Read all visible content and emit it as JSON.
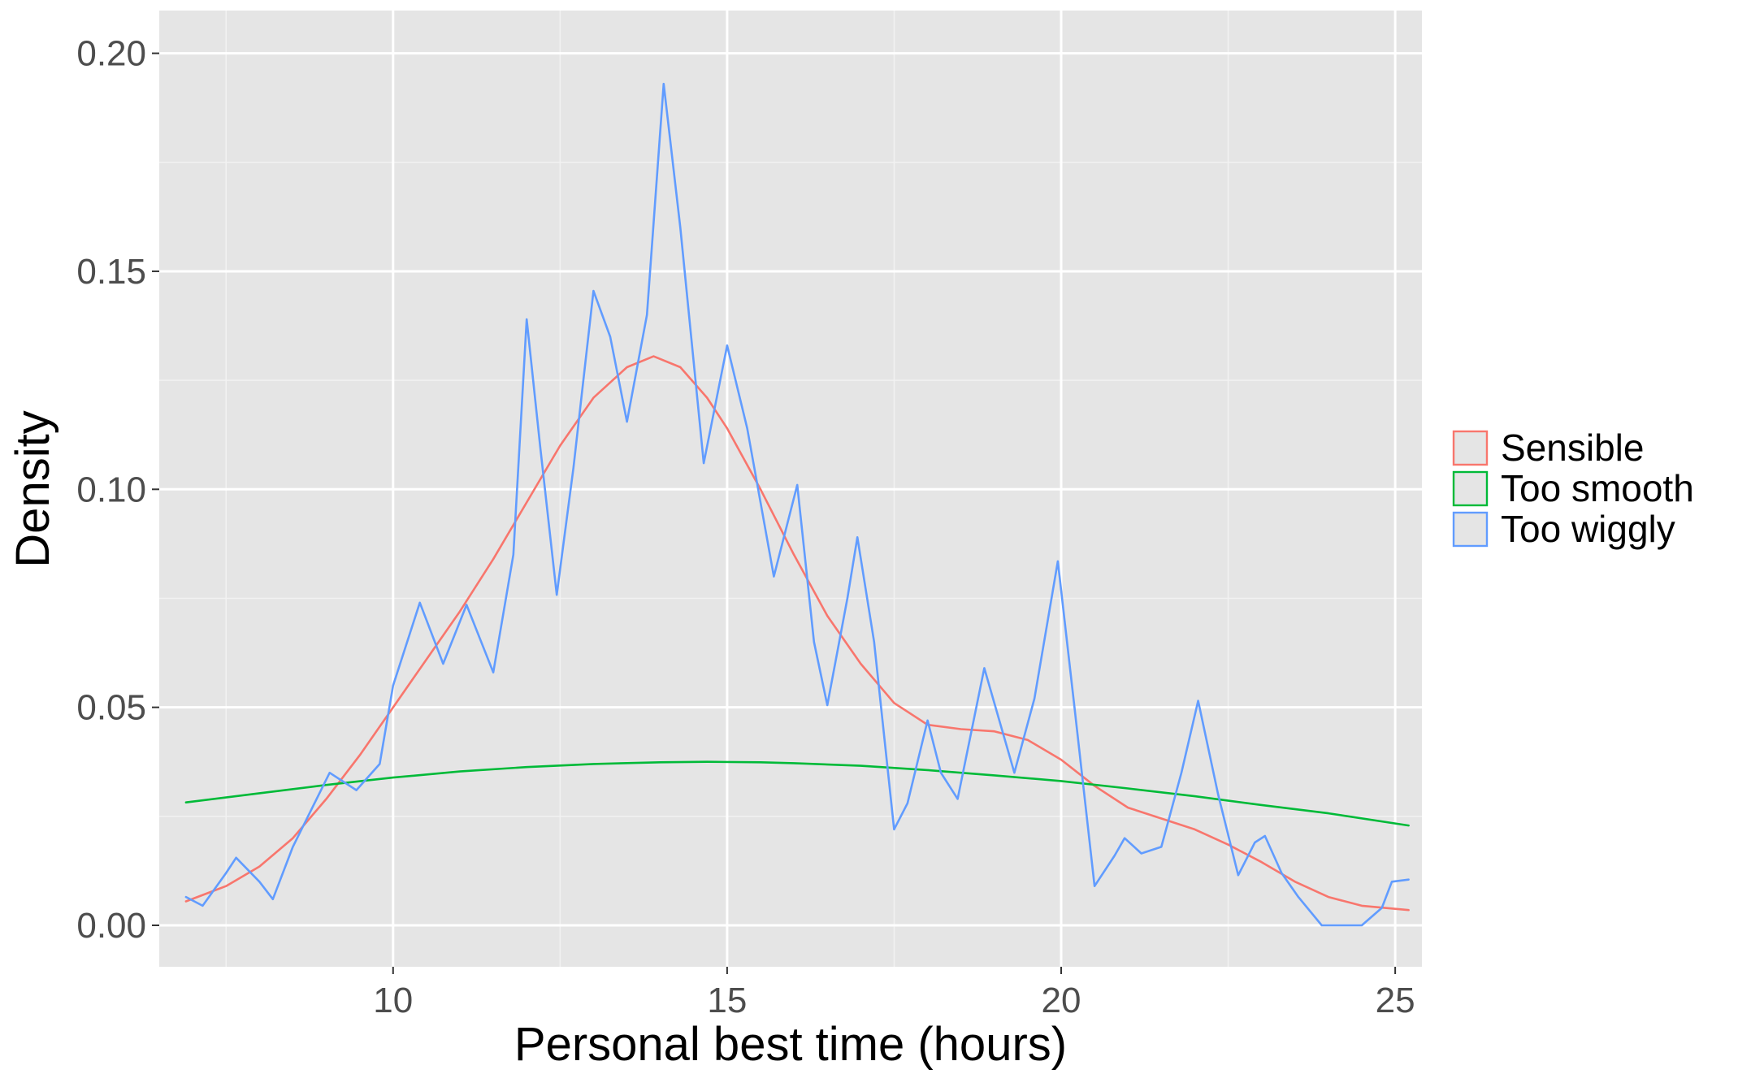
{
  "chart_data": {
    "type": "line",
    "title": "",
    "xlabel": "Personal best time (hours)",
    "ylabel": "Density",
    "xlim": [
      6.5,
      25.4
    ],
    "ylim": [
      -0.0095,
      0.2098
    ],
    "x_ticks": [
      10,
      15,
      20,
      25
    ],
    "x_tick_labels": [
      "10",
      "15",
      "20",
      "25"
    ],
    "y_ticks": [
      0.0,
      0.05,
      0.1,
      0.15,
      0.2
    ],
    "y_tick_labels": [
      "0.00",
      "0.05",
      "0.10",
      "0.15",
      "0.20"
    ],
    "x_minor": [
      7.5,
      12.5,
      17.5,
      22.5
    ],
    "y_minor": [
      0.025,
      0.075,
      0.125,
      0.175
    ],
    "grid": true,
    "background": "#e5e5e5",
    "legend": {
      "position": "right",
      "entries": [
        "Sensible",
        "Too smooth",
        "Too wiggly"
      ]
    },
    "series": [
      {
        "name": "Sensible",
        "color": "#f8766d",
        "x": [
          6.9,
          7.5,
          8.0,
          8.5,
          9.0,
          9.5,
          10.0,
          10.5,
          11.0,
          11.5,
          12.0,
          12.5,
          13.0,
          13.5,
          13.9,
          14.3,
          14.7,
          15.0,
          15.5,
          16.0,
          16.5,
          17.0,
          17.5,
          18.0,
          18.5,
          19.0,
          19.5,
          20.0,
          20.5,
          21.0,
          21.5,
          22.0,
          22.5,
          23.0,
          23.5,
          24.0,
          24.5,
          25.2
        ],
        "values": [
          0.0055,
          0.009,
          0.0135,
          0.02,
          0.029,
          0.039,
          0.05,
          0.061,
          0.072,
          0.084,
          0.097,
          0.11,
          0.121,
          0.128,
          0.1305,
          0.128,
          0.121,
          0.114,
          0.1,
          0.085,
          0.071,
          0.06,
          0.051,
          0.046,
          0.045,
          0.0445,
          0.0425,
          0.038,
          0.032,
          0.027,
          0.0245,
          0.022,
          0.0185,
          0.0145,
          0.01,
          0.0065,
          0.0045,
          0.0035
        ]
      },
      {
        "name": "Too smooth",
        "color": "#00ba38",
        "x": [
          6.9,
          8.0,
          9.0,
          10.0,
          11.0,
          12.0,
          13.0,
          14.0,
          14.7,
          15.5,
          16.0,
          17.0,
          18.0,
          19.0,
          20.0,
          21.0,
          22.0,
          23.0,
          24.0,
          25.2
        ],
        "values": [
          0.0282,
          0.0303,
          0.0322,
          0.0339,
          0.0353,
          0.0363,
          0.037,
          0.0374,
          0.0375,
          0.0374,
          0.0372,
          0.0366,
          0.0356,
          0.0344,
          0.0331,
          0.0314,
          0.0296,
          0.0276,
          0.0257,
          0.0229
        ]
      },
      {
        "name": "Too wiggly",
        "color": "#619cff",
        "x": [
          6.9,
          7.15,
          7.5,
          7.65,
          8.0,
          8.2,
          8.5,
          9.05,
          9.45,
          9.8,
          10.0,
          10.4,
          10.75,
          11.1,
          11.5,
          11.8,
          12.0,
          12.2,
          12.45,
          12.7,
          13.0,
          13.25,
          13.5,
          13.8,
          14.05,
          14.3,
          14.65,
          15.0,
          15.3,
          15.7,
          16.05,
          16.3,
          16.5,
          16.8,
          16.95,
          17.2,
          17.5,
          17.7,
          18.0,
          18.2,
          18.45,
          18.85,
          19.3,
          19.6,
          19.95,
          20.2,
          20.5,
          20.8,
          20.95,
          21.2,
          21.5,
          21.8,
          22.05,
          22.35,
          22.65,
          22.9,
          23.05,
          23.3,
          23.55,
          23.9,
          24.2,
          24.5,
          24.8,
          24.95,
          25.2
        ],
        "values": [
          0.0065,
          0.0045,
          0.012,
          0.0155,
          0.01,
          0.006,
          0.018,
          0.035,
          0.031,
          0.037,
          0.055,
          0.074,
          0.06,
          0.0735,
          0.058,
          0.085,
          0.139,
          0.11,
          0.0758,
          0.105,
          0.1455,
          0.135,
          0.1155,
          0.14,
          0.193,
          0.16,
          0.106,
          0.133,
          0.114,
          0.08,
          0.101,
          0.065,
          0.0505,
          0.075,
          0.089,
          0.065,
          0.022,
          0.028,
          0.047,
          0.035,
          0.029,
          0.059,
          0.035,
          0.052,
          0.0835,
          0.05,
          0.009,
          0.016,
          0.02,
          0.0165,
          0.018,
          0.035,
          0.0515,
          0.03,
          0.0115,
          0.019,
          0.0205,
          0.012,
          0.0065,
          0.0,
          0.0,
          0.0,
          0.004,
          0.01,
          0.0105
        ]
      }
    ]
  }
}
